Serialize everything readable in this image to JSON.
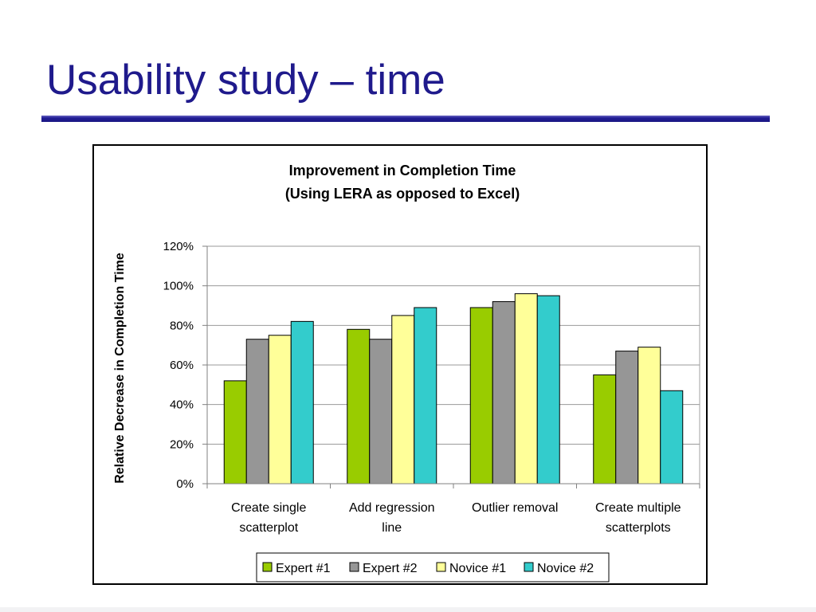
{
  "slide": {
    "title": "Usability study – time"
  },
  "chart_data": {
    "type": "bar",
    "title": "Improvement in Completion Time",
    "subtitle": "(Using LERA as opposed to Excel)",
    "xlabel": "",
    "ylabel": "Relative Decrease in Completion Time",
    "ylim": [
      0,
      1.2
    ],
    "yticks": [
      0,
      0.2,
      0.4,
      0.6,
      0.8,
      1.0,
      1.2
    ],
    "ytick_labels": [
      "0%",
      "20%",
      "40%",
      "60%",
      "80%",
      "100%",
      "120%"
    ],
    "grid": true,
    "legend_position": "bottom",
    "categories": [
      [
        "Create single",
        "scatterplot"
      ],
      [
        "Add regression",
        "line"
      ],
      [
        "Outlier removal"
      ],
      [
        "Create multiple",
        "scatterplots"
      ]
    ],
    "series": [
      {
        "name": "Expert #1",
        "color": "#99cc00",
        "values": [
          0.52,
          0.78,
          0.89,
          0.55
        ]
      },
      {
        "name": "Expert #2",
        "color": "#969696",
        "values": [
          0.73,
          0.73,
          0.92,
          0.67
        ]
      },
      {
        "name": "Novice #1",
        "color": "#ffff99",
        "values": [
          0.75,
          0.85,
          0.96,
          0.69
        ]
      },
      {
        "name": "Novice #2",
        "color": "#33cccc",
        "values": [
          0.82,
          0.89,
          0.95,
          0.47
        ]
      }
    ]
  }
}
